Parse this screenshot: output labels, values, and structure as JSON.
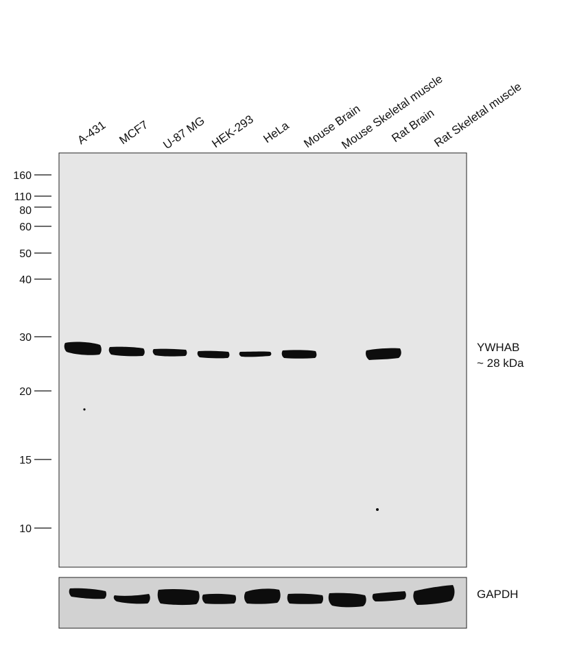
{
  "lanes": [
    {
      "label": "A-431"
    },
    {
      "label": "MCF7"
    },
    {
      "label": "U-87 MG"
    },
    {
      "label": "HEK-293"
    },
    {
      "label": "HeLa"
    },
    {
      "label": "Mouse Brain"
    },
    {
      "label": "Mouse Skeletal muscle"
    },
    {
      "label": "Rat Brain"
    },
    {
      "label": "Rat Skeletal muscle"
    }
  ],
  "markers": [
    "160",
    "110",
    "80",
    "60",
    "50",
    "40",
    "30",
    "20",
    "15",
    "10"
  ],
  "target": {
    "name": "YWHAB",
    "size": "~ 28 kDa"
  },
  "loading_control": {
    "name": "GAPDH"
  },
  "colors": {
    "membrane": "#e6e6e6",
    "band": "#0d0d0d",
    "border": "#222222"
  }
}
